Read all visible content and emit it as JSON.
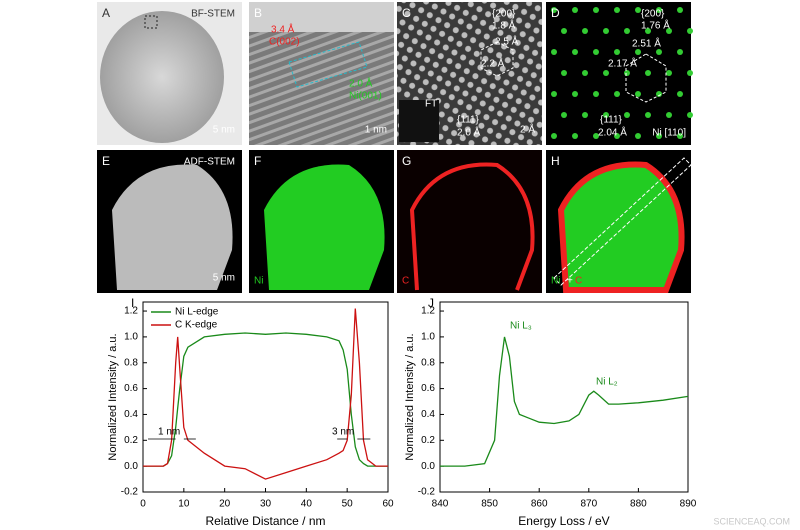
{
  "panels": [
    {
      "label": "A",
      "texts": [
        "BF-STEM",
        "5 nm"
      ]
    },
    {
      "label": "B",
      "texts": [
        "3.4 Å",
        "C(002)",
        "2.0 Å",
        "Ni(001)",
        "1 nm"
      ]
    },
    {
      "label": "C",
      "texts": [
        "{200}",
        "1.8 Å",
        "2.5 Å",
        "2.2 Å",
        "FT",
        "{111}",
        "2.0 Å",
        "2 Å"
      ]
    },
    {
      "label": "D",
      "texts": [
        "{200}",
        "1.76 Å",
        "2.51 Å",
        "2.17 Å",
        "{111}",
        "2.04 Å",
        "Ni [110]"
      ]
    },
    {
      "label": "E",
      "texts": [
        "ADF-STEM",
        "5 nm"
      ]
    },
    {
      "label": "F",
      "texts": [
        "Ni"
      ]
    },
    {
      "label": "G",
      "texts": [
        "C"
      ]
    },
    {
      "label": "H",
      "texts": [
        "Ni",
        "+",
        "C"
      ]
    }
  ],
  "watermark": "SCIENCEAQ.COM",
  "chart_data": [
    {
      "type": "line",
      "label": "I",
      "x_label": "Relative Distance / nm",
      "y_label": "Normalized Intensity / a.u.",
      "x": [
        0,
        5,
        6,
        7,
        8,
        8.5,
        9,
        10,
        11,
        13,
        15,
        20,
        25,
        30,
        35,
        40,
        45,
        48,
        49,
        50,
        51,
        52,
        53,
        54,
        55,
        57,
        60
      ],
      "series": [
        {
          "name": "Ni L-edge",
          "color": "#1a8a1a",
          "values": [
            0,
            0,
            0.02,
            0.08,
            0.3,
            0.45,
            0.6,
            0.85,
            0.92,
            0.96,
            1.0,
            1.02,
            1.03,
            1.02,
            1.03,
            1.02,
            1.0,
            0.97,
            0.9,
            0.75,
            0.4,
            0.15,
            0.05,
            0.02,
            0,
            0,
            0
          ]
        },
        {
          "name": "C K-edge",
          "color": "#cc1111",
          "values": [
            0,
            0,
            0.02,
            0.2,
            0.8,
            1.0,
            0.75,
            0.3,
            0.2,
            0.15,
            0.1,
            0.0,
            -0.02,
            -0.1,
            -0.05,
            0.0,
            0.05,
            0.1,
            0.12,
            0.2,
            0.55,
            1.22,
            0.8,
            0.2,
            0.05,
            0,
            0
          ]
        }
      ],
      "annotations": [
        "1 nm",
        "3 nm"
      ],
      "xlim": [
        0,
        60
      ],
      "xticks": [
        0,
        10,
        20,
        30,
        40,
        50,
        60
      ],
      "ylim": [
        -0.2,
        1.27
      ],
      "yticks": [
        -0.2,
        {
          "value": 0,
          "label": "0.0"
        },
        0.2,
        0.4,
        0.6,
        0.8,
        {
          "value": 1,
          "label": "1.0"
        },
        1.2
      ],
      "legend": "top-left"
    },
    {
      "type": "line",
      "label": "J",
      "x_label": "Energy Loss / eV",
      "y_label": "Normalized Intensity / a.u.",
      "x": [
        840,
        845,
        849,
        851,
        852,
        853,
        854,
        855,
        856,
        858,
        860,
        863,
        866,
        868,
        870,
        871,
        872,
        874,
        876,
        880,
        885,
        890
      ],
      "series": [
        {
          "color": "#1a8a1a",
          "values": [
            0.0,
            0.0,
            0.02,
            0.2,
            0.7,
            1.0,
            0.85,
            0.5,
            0.4,
            0.37,
            0.34,
            0.33,
            0.35,
            0.4,
            0.55,
            0.58,
            0.55,
            0.48,
            0.48,
            0.49,
            0.51,
            0.54
          ]
        }
      ],
      "annotations": [
        "Ni L₃",
        "Ni L₂"
      ],
      "xlim": [
        840,
        890
      ],
      "xticks": [
        840,
        850,
        860,
        870,
        880,
        890
      ],
      "ylim": [
        -0.2,
        1.27
      ],
      "yticks": [
        -0.2,
        {
          "value": 0,
          "label": "0.0"
        },
        0.2,
        0.4,
        0.6,
        0.8,
        {
          "value": 1,
          "label": "1.0"
        },
        1.2
      ]
    }
  ]
}
